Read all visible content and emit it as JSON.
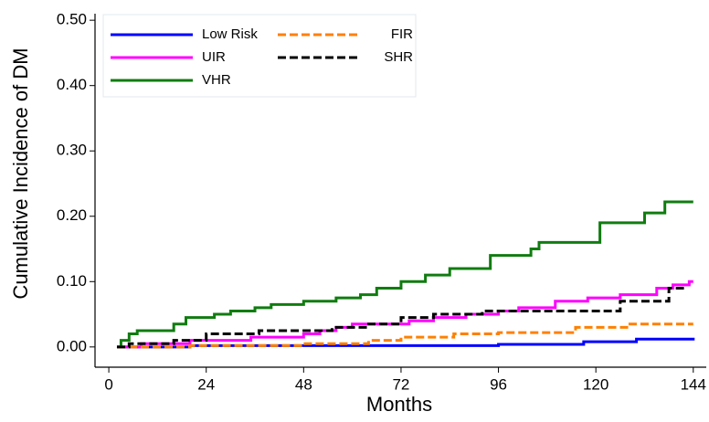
{
  "chart_data": {
    "type": "step",
    "ylabel": "Cumulative Incidence of DM",
    "xlabel": "Months",
    "xlim": [
      -3.4,
      147.2
    ],
    "ylim": [
      -0.031,
      0.51
    ],
    "xticks": [
      0,
      24,
      48,
      72,
      96,
      120,
      144
    ],
    "yticks": [
      {
        "value": 0,
        "label": "0.00"
      },
      {
        "value": 0.1,
        "label": "0.10"
      },
      {
        "value": 0.2,
        "label": "0.20"
      },
      {
        "value": 0.3,
        "label": "0.30"
      },
      {
        "value": 0.4,
        "label": "0.40"
      },
      {
        "value": 0.5,
        "label": "0.50"
      }
    ],
    "legend": "upper left",
    "series": [
      {
        "name": "Low Risk",
        "color": "#0000ff",
        "linestyle": "solid",
        "x": [
          2,
          20,
          96,
          117,
          130,
          144
        ],
        "values": [
          0,
          0.002,
          0.004,
          0.008,
          0.012,
          0.014
        ]
      },
      {
        "name": "UIR",
        "color": "#ff00ff",
        "linestyle": "solid",
        "x": [
          2,
          8,
          20,
          35,
          48,
          52,
          56,
          60,
          74,
          80,
          88,
          96,
          101,
          110,
          118,
          126,
          135,
          139,
          143,
          144
        ],
        "values": [
          0,
          0.005,
          0.01,
          0.015,
          0.02,
          0.025,
          0.03,
          0.035,
          0.04,
          0.045,
          0.05,
          0.055,
          0.06,
          0.07,
          0.075,
          0.08,
          0.09,
          0.095,
          0.1,
          0.1
        ]
      },
      {
        "name": "VHR",
        "color": "#107c10",
        "linestyle": "solid",
        "x": [
          2,
          3,
          5,
          7,
          16,
          19,
          26,
          30,
          36,
          40,
          48,
          56,
          62,
          66,
          72,
          78,
          84,
          94,
          104,
          106,
          121,
          132,
          137,
          144
        ],
        "values": [
          0,
          0.01,
          0.02,
          0.025,
          0.035,
          0.045,
          0.05,
          0.055,
          0.06,
          0.065,
          0.07,
          0.075,
          0.08,
          0.09,
          0.1,
          0.11,
          0.12,
          0.14,
          0.15,
          0.16,
          0.19,
          0.205,
          0.222,
          0.222
        ]
      },
      {
        "name": "FIR",
        "color": "#ff8000",
        "linestyle": "dashed",
        "x": [
          2,
          20,
          48,
          64,
          72,
          85,
          96,
          115,
          128,
          144
        ],
        "values": [
          0,
          0.002,
          0.005,
          0.01,
          0.015,
          0.02,
          0.022,
          0.03,
          0.035,
          0.035
        ]
      },
      {
        "name": "SHR",
        "color": "#000000",
        "linestyle": "dashed",
        "x": [
          2,
          5,
          16,
          24,
          37,
          55,
          64,
          72,
          80,
          92,
          126,
          138,
          142
        ],
        "values": [
          0,
          0.005,
          0.01,
          0.02,
          0.025,
          0.03,
          0.035,
          0.045,
          0.05,
          0.055,
          0.07,
          0.09,
          0.09
        ]
      }
    ]
  }
}
